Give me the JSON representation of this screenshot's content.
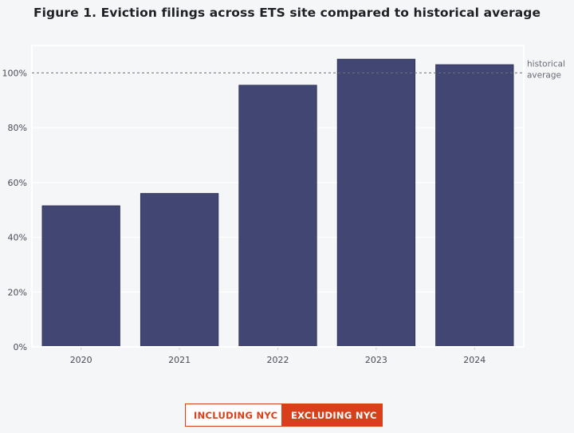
{
  "title": "Figure 1. Eviction filings across ETS site compared to historical average",
  "chart_data": {
    "type": "bar",
    "categories": [
      "2020",
      "2021",
      "2022",
      "2023",
      "2024"
    ],
    "values": [
      51.5,
      56,
      95.5,
      105,
      103
    ],
    "ylim": [
      0,
      110
    ],
    "yticks": [
      0,
      20,
      40,
      60,
      80,
      100
    ],
    "ytick_labels": [
      "0%",
      "20%",
      "40%",
      "60%",
      "80%",
      "100%"
    ],
    "reference_line": {
      "value": 100,
      "label_lines": [
        "historical",
        "average"
      ]
    },
    "grid": true,
    "colors": {
      "bar": "#414673",
      "bar_stroke": "#2b2f55",
      "reference": "#6f6f7a",
      "grid": "#e6e7ec"
    }
  },
  "toggle": {
    "including_label": "INCLUDING NYC",
    "excluding_label": "EXCLUDING NYC",
    "active": "EXCLUDING NYC",
    "accent_color": "#d8401b"
  }
}
